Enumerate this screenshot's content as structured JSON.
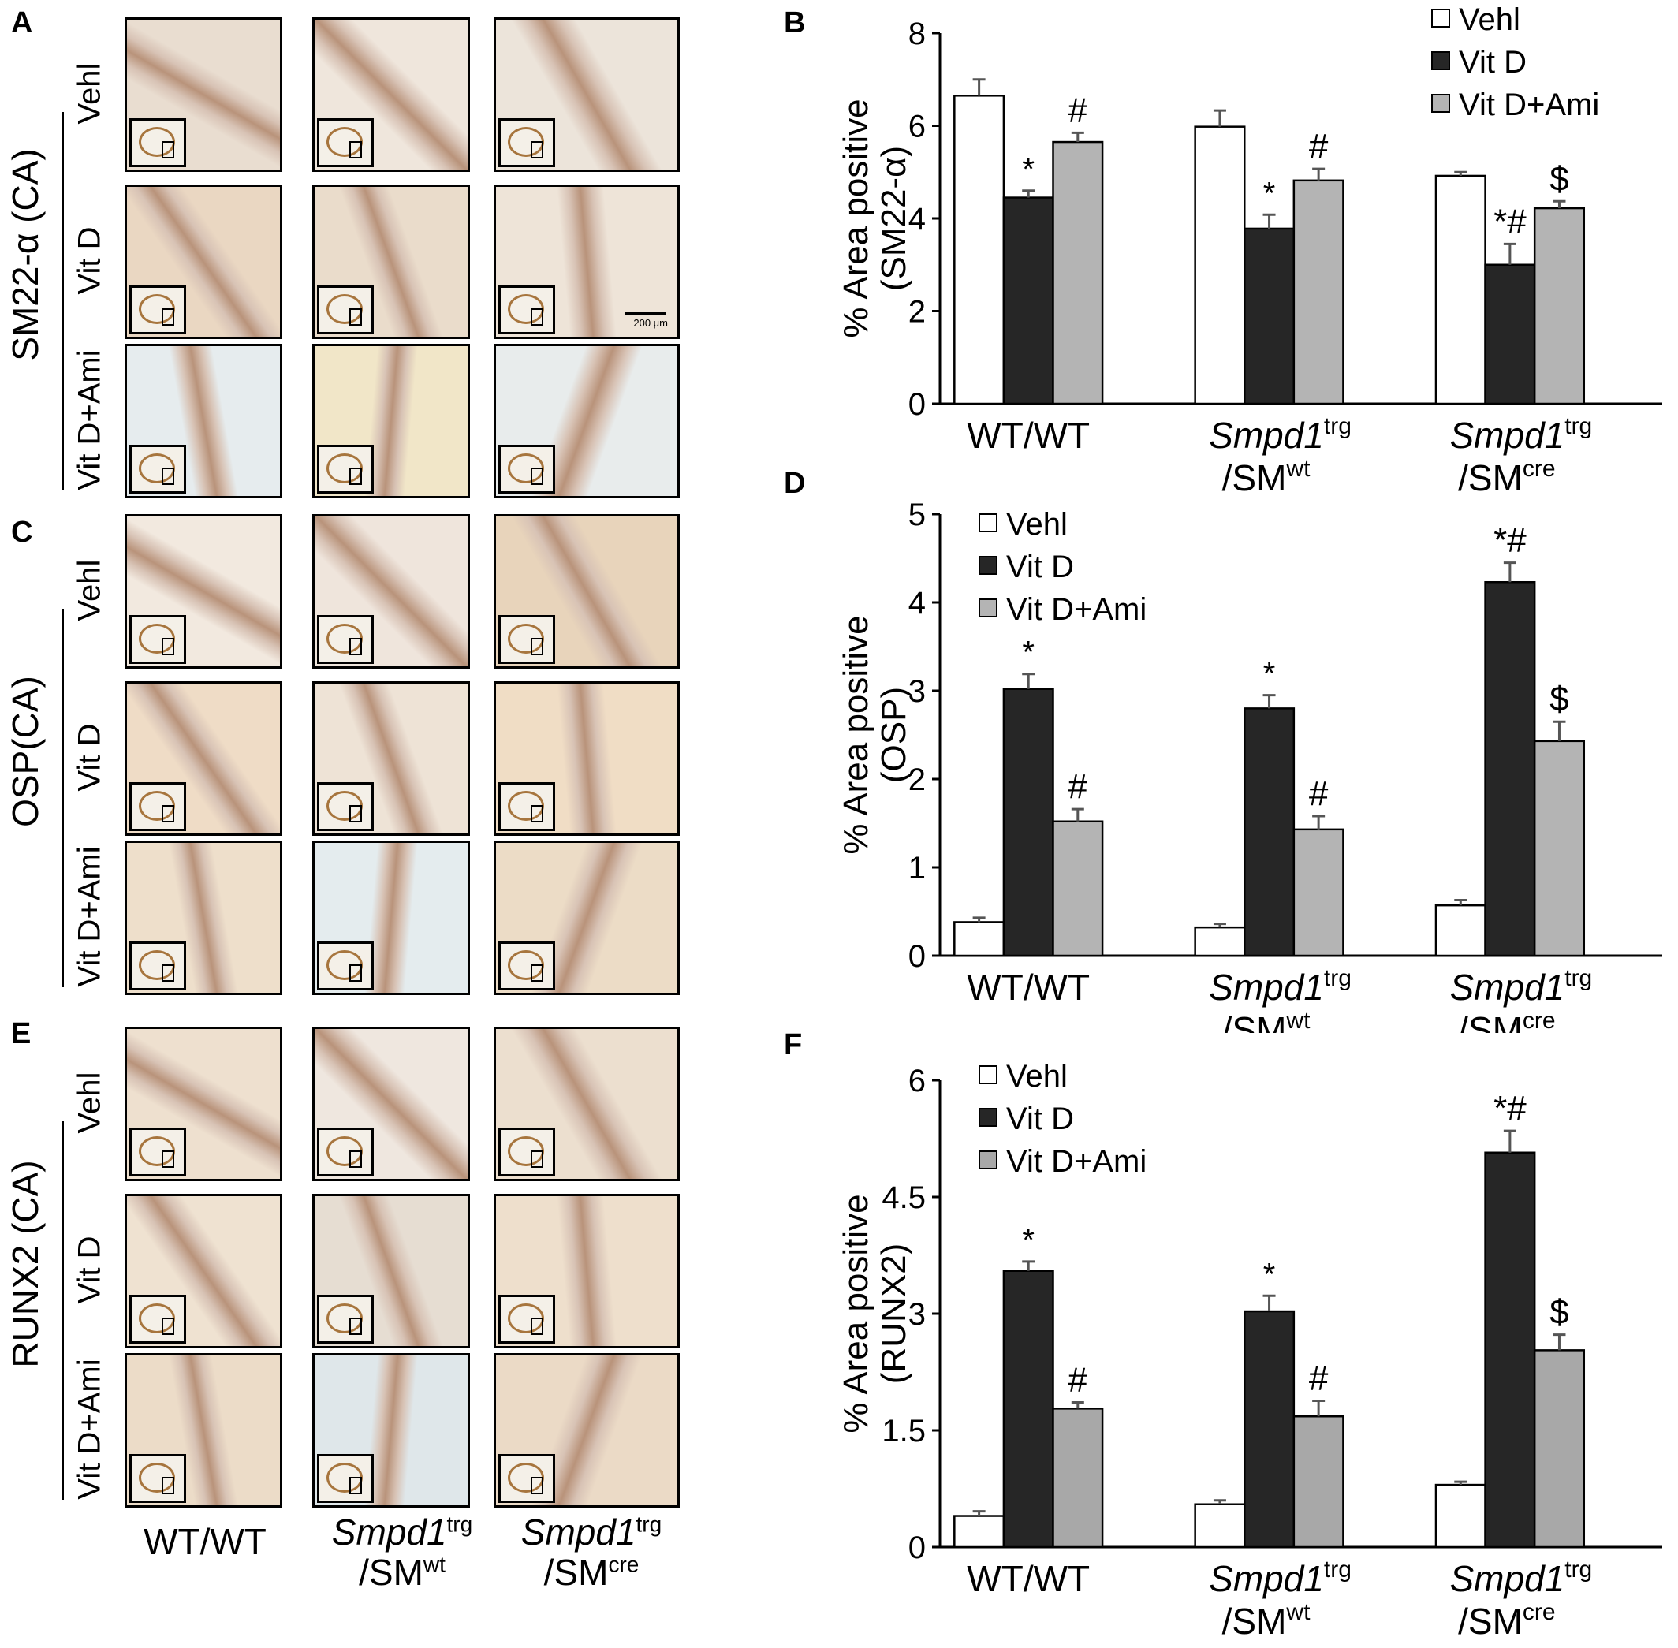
{
  "panels": {
    "A": "A",
    "B": "B",
    "C": "C",
    "D": "D",
    "E": "E",
    "F": "F"
  },
  "micro": {
    "sections": [
      {
        "key": "A",
        "stain": "SM22-α (CA)",
        "rows": [
          "Vehl",
          "Vit D",
          "Vit D+Ami"
        ]
      },
      {
        "key": "C",
        "stain": "OSP(CA)",
        "rows": [
          "Vehl",
          "Vit D",
          "Vit D+Ami"
        ]
      },
      {
        "key": "E",
        "stain": "RUNX2 (CA)",
        "rows": [
          "Vehl",
          "Vit D",
          "Vit D+Ami"
        ]
      }
    ],
    "scale_bar": "200 μm",
    "columns": [
      {
        "main": "WT/WT",
        "italic": "",
        "sup": "",
        "line2": "",
        "line2_sup": ""
      },
      {
        "main": "",
        "italic": "Smpd1",
        "sup": "trg",
        "line2": "/SM",
        "line2_sup": "wt"
      },
      {
        "main": "",
        "italic": "Smpd1",
        "sup": "trg",
        "line2": "/SM",
        "line2_sup": "cre"
      }
    ],
    "tile_colors": {
      "A": [
        [
          "#e9ddd0",
          "#efe6dc",
          "#ece4da"
        ],
        [
          "#ead7c2",
          "#eadccb",
          "#eee4d8"
        ],
        [
          "#e6ecee",
          "#f1e6c8",
          "#e8ecec"
        ]
      ],
      "C": [
        [
          "#f2e9df",
          "#efe5dc",
          "#e8d4bb"
        ],
        [
          "#efdcc6",
          "#eee3d6",
          "#f0ddc5"
        ],
        [
          "#eedfcb",
          "#e4ecee",
          "#ecdcc6"
        ]
      ],
      "E": [
        [
          "#eee0cf",
          "#efe7df",
          "#ecdfcf"
        ],
        [
          "#efe2d1",
          "#e6ddd2",
          "#eedfcc"
        ],
        [
          "#ecdcc8",
          "#dfe7ea",
          "#ebdac6"
        ]
      ]
    },
    "stain_color": "#8a4b22"
  },
  "chart_data": [
    {
      "panel": "B",
      "type": "bar",
      "ylabel": [
        "% Area positive",
        "(SM22-α)"
      ],
      "ylim": [
        0,
        8
      ],
      "yticks": [
        "0",
        "2",
        "4",
        "6",
        "8"
      ],
      "ytick_values": [
        0,
        2,
        4,
        6,
        8
      ],
      "legend_position": "top-right",
      "categories": [
        {
          "main": "WT/WT",
          "italic": "",
          "sup": "",
          "line2": "",
          "line2_sup": ""
        },
        {
          "main": "",
          "italic": "Smpd1",
          "sup": "trg",
          "line2": "/SM",
          "line2_sup": "wt"
        },
        {
          "main": "",
          "italic": "Smpd1",
          "sup": "trg",
          "line2": "/SM",
          "line2_sup": "cre"
        }
      ],
      "series": [
        {
          "name": "Vehl",
          "color": "#ffffff",
          "values": [
            6.65,
            5.98,
            4.92
          ],
          "errors": [
            0.35,
            0.35,
            0.08
          ],
          "annotations": [
            "",
            "",
            ""
          ]
        },
        {
          "name": "Vit D",
          "color": "#262626",
          "values": [
            4.45,
            3.78,
            3.0
          ],
          "errors": [
            0.15,
            0.3,
            0.45
          ],
          "annotations": [
            "*",
            "*",
            "*#"
          ]
        },
        {
          "name": "Vit D+Ami",
          "color": "#b4b4b4",
          "values": [
            5.65,
            4.82,
            4.22
          ],
          "errors": [
            0.2,
            0.25,
            0.15
          ],
          "annotations": [
            "#",
            "#",
            "$"
          ]
        }
      ]
    },
    {
      "panel": "D",
      "type": "bar",
      "ylabel": [
        "% Area positive",
        "(OSP)"
      ],
      "ylim": [
        0,
        5
      ],
      "yticks": [
        "0",
        "1",
        "2",
        "3",
        "4",
        "5"
      ],
      "ytick_values": [
        0,
        1,
        2,
        3,
        4,
        5
      ],
      "legend_position": "top-left",
      "categories": [
        {
          "main": "WT/WT",
          "italic": "",
          "sup": "",
          "line2": "",
          "line2_sup": ""
        },
        {
          "main": "",
          "italic": "Smpd1",
          "sup": "trg",
          "line2": "/SM",
          "line2_sup": "wt"
        },
        {
          "main": "",
          "italic": "Smpd1",
          "sup": "trg",
          "line2": "/SM",
          "line2_sup": "cre"
        }
      ],
      "series": [
        {
          "name": "Vehl",
          "color": "#ffffff",
          "values": [
            0.38,
            0.32,
            0.57
          ],
          "errors": [
            0.05,
            0.04,
            0.06
          ],
          "annotations": [
            "",
            "",
            ""
          ]
        },
        {
          "name": "Vit D",
          "color": "#262626",
          "values": [
            3.02,
            2.8,
            4.23
          ],
          "errors": [
            0.17,
            0.15,
            0.22
          ],
          "annotations": [
            "*",
            "*",
            "*#"
          ]
        },
        {
          "name": "Vit D+Ami",
          "color": "#b4b4b4",
          "values": [
            1.52,
            1.43,
            2.43
          ],
          "errors": [
            0.14,
            0.15,
            0.22
          ],
          "annotations": [
            "#",
            "#",
            "$"
          ]
        }
      ]
    },
    {
      "panel": "F",
      "type": "bar",
      "ylabel": [
        "% Area positive",
        "(RUNX2)"
      ],
      "ylim": [
        0,
        6
      ],
      "yticks": [
        "0",
        "1.5",
        "3",
        "4.5",
        "6"
      ],
      "ytick_values": [
        0,
        1.5,
        3,
        4.5,
        6
      ],
      "legend_position": "top-left",
      "categories": [
        {
          "main": "WT/WT",
          "italic": "",
          "sup": "",
          "line2": "",
          "line2_sup": ""
        },
        {
          "main": "",
          "italic": "Smpd1",
          "sup": "trg",
          "line2": "/SM",
          "line2_sup": "wt"
        },
        {
          "main": "",
          "italic": "Smpd1",
          "sup": "trg",
          "line2": "/SM",
          "line2_sup": "cre"
        }
      ],
      "series": [
        {
          "name": "Vehl",
          "color": "#ffffff",
          "values": [
            0.4,
            0.55,
            0.8
          ],
          "errors": [
            0.06,
            0.05,
            0.04
          ],
          "annotations": [
            "",
            "",
            ""
          ]
        },
        {
          "name": "Vit D",
          "color": "#262626",
          "values": [
            3.55,
            3.03,
            5.07
          ],
          "errors": [
            0.12,
            0.2,
            0.28
          ],
          "annotations": [
            "*",
            "*",
            "*#"
          ]
        },
        {
          "name": "Vit D+Ami",
          "color": "#a8a8a8",
          "values": [
            1.78,
            1.68,
            2.53
          ],
          "errors": [
            0.08,
            0.2,
            0.2
          ],
          "annotations": [
            "#",
            "#",
            "$"
          ]
        }
      ]
    }
  ]
}
